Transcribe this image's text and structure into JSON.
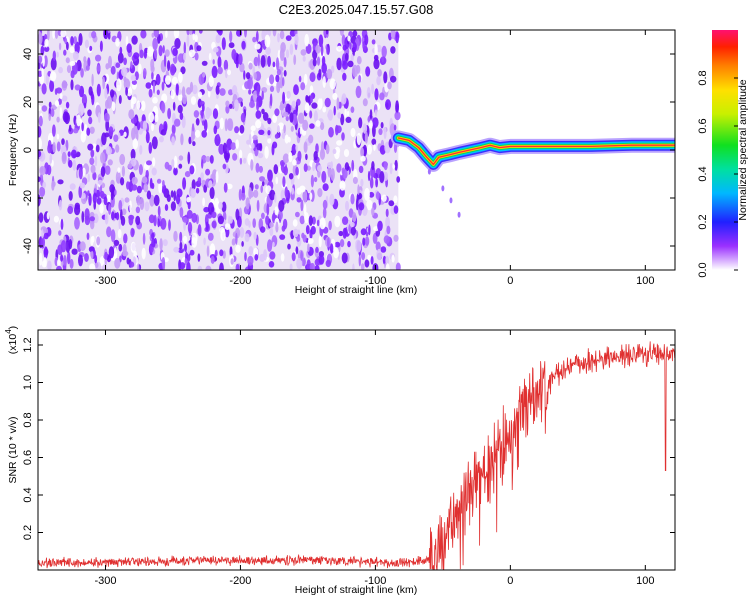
{
  "title": "C2E3.2025.047.15.57.G08",
  "chart_data": [
    {
      "type": "heatmap",
      "xlabel": "Height of straight line (km)",
      "ylabel": "Frequency (Hz)",
      "xlim": [
        -350,
        122
      ],
      "ylim": [
        -50,
        50
      ],
      "x_ticks": [
        "-300",
        "-200",
        "-100",
        "0",
        "100"
      ],
      "y_ticks": [
        "-40",
        "-20",
        "0",
        "20",
        "40"
      ],
      "noise_region_x": [
        -350,
        -83
      ],
      "signal_track": [
        {
          "x": -83,
          "y": 5
        },
        {
          "x": -75,
          "y": 4
        },
        {
          "x": -68,
          "y": 1
        },
        {
          "x": -62,
          "y": -3
        },
        {
          "x": -57,
          "y": -6
        },
        {
          "x": -53,
          "y": -3
        },
        {
          "x": -45,
          "y": -2
        },
        {
          "x": -38,
          "y": -1
        },
        {
          "x": -30,
          "y": 0
        },
        {
          "x": -22,
          "y": 1
        },
        {
          "x": -15,
          "y": 2
        },
        {
          "x": -8,
          "y": 1
        },
        {
          "x": 0,
          "y": 1.5
        },
        {
          "x": 20,
          "y": 1.5
        },
        {
          "x": 60,
          "y": 1.5
        },
        {
          "x": 90,
          "y": 2
        },
        {
          "x": 122,
          "y": 2
        }
      ],
      "colorbar": {
        "label": "Normalized spectral amplitude",
        "range": [
          0,
          1
        ],
        "ticks": [
          "0.0",
          "0.2",
          "0.4",
          "0.6",
          "0.8"
        ]
      }
    },
    {
      "type": "line",
      "xlabel": "Height of straight line (km)",
      "ylabel": "SNR (10 * v/v)",
      "y_multiplier": "(x10",
      "y_multiplier_exp": "4",
      "y_multiplier_close": ")",
      "xlim": [
        -350,
        122
      ],
      "ylim": [
        0.0,
        1.28
      ],
      "x_ticks": [
        "-300",
        "-200",
        "-100",
        "0",
        "100"
      ],
      "y_ticks": [
        "0.2",
        "0.4",
        "0.6",
        "0.8",
        "1.0",
        "1.2"
      ],
      "series": [
        {
          "color": "#e03030",
          "trend": [
            {
              "x": -350,
              "y": 0.04
            },
            {
              "x": -300,
              "y": 0.04
            },
            {
              "x": -250,
              "y": 0.05
            },
            {
              "x": -200,
              "y": 0.05
            },
            {
              "x": -150,
              "y": 0.05
            },
            {
              "x": -100,
              "y": 0.04
            },
            {
              "x": -75,
              "y": 0.04
            },
            {
              "x": -60,
              "y": 0.06
            },
            {
              "x": -50,
              "y": 0.12
            },
            {
              "x": -45,
              "y": 0.22
            },
            {
              "x": -40,
              "y": 0.3
            },
            {
              "x": -35,
              "y": 0.36
            },
            {
              "x": -30,
              "y": 0.42
            },
            {
              "x": -25,
              "y": 0.47
            },
            {
              "x": -20,
              "y": 0.52
            },
            {
              "x": -15,
              "y": 0.58
            },
            {
              "x": -10,
              "y": 0.65
            },
            {
              "x": -5,
              "y": 0.7
            },
            {
              "x": 0,
              "y": 0.76
            },
            {
              "x": 5,
              "y": 0.82
            },
            {
              "x": 10,
              "y": 0.88
            },
            {
              "x": 15,
              "y": 0.93
            },
            {
              "x": 20,
              "y": 0.97
            },
            {
              "x": 30,
              "y": 1.03
            },
            {
              "x": 40,
              "y": 1.07
            },
            {
              "x": 50,
              "y": 1.1
            },
            {
              "x": 60,
              "y": 1.12
            },
            {
              "x": 70,
              "y": 1.13
            },
            {
              "x": 80,
              "y": 1.14
            },
            {
              "x": 90,
              "y": 1.15
            },
            {
              "x": 100,
              "y": 1.15
            },
            {
              "x": 110,
              "y": 1.15
            },
            {
              "x": 122,
              "y": 1.15
            }
          ],
          "dip": {
            "x": 115,
            "y": 0.53
          }
        }
      ]
    }
  ]
}
